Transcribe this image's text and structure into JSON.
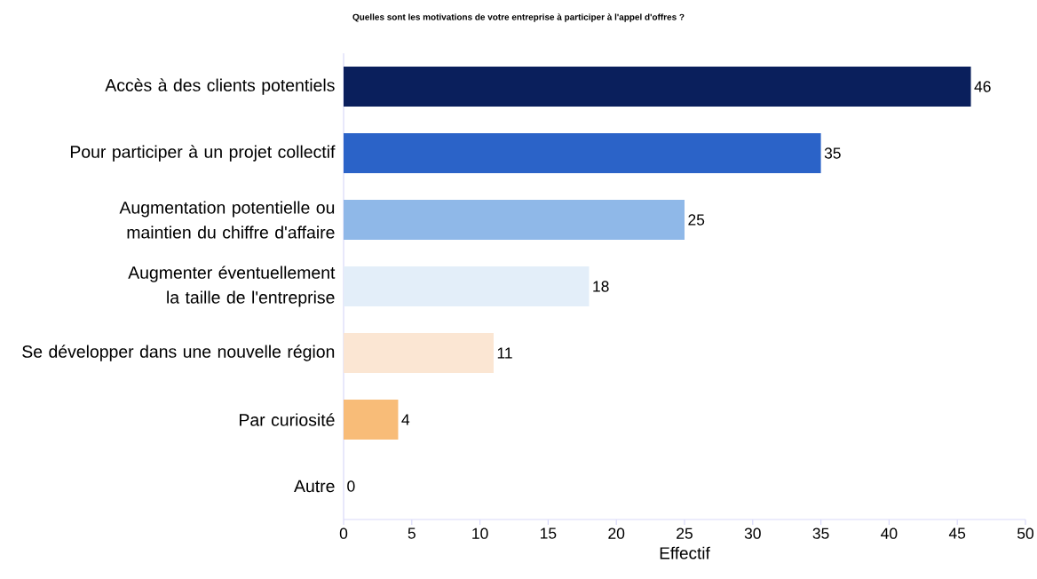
{
  "chart_data": {
    "type": "bar",
    "orientation": "horizontal",
    "title": "Quelles sont les motivations de votre entreprise à participer à l'appel d'offres ?",
    "categories": [
      "Accès à des clients potentiels",
      "Pour participer à un projet collectif",
      "Augmentation potentielle ou maintien du chiffre d'affaire",
      "Augmenter éventuellement la taille de l'entreprise",
      "Se développer dans une nouvelle région",
      "Par curiosité",
      "Autre"
    ],
    "values": [
      46,
      35,
      25,
      18,
      11,
      4,
      0
    ],
    "colors": [
      "#0a1f5c",
      "#2b63c8",
      "#8fb8e8",
      "#e3eef9",
      "#fbe6d3",
      "#f8bc78",
      "#d9d9d9"
    ],
    "xlim": [
      0,
      50
    ],
    "xticks": [
      0,
      5,
      10,
      15,
      20,
      25,
      30,
      35,
      40,
      45,
      50
    ],
    "xlabel": "Effectif",
    "data_labels": true
  }
}
